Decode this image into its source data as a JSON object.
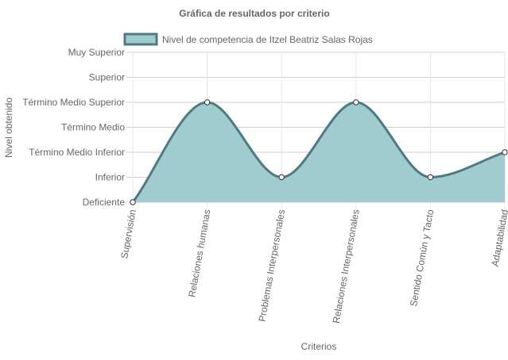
{
  "chart_data": {
    "type": "area",
    "title": "Gráfica de resultados por criterio",
    "xlabel": "Criterios",
    "ylabel": "Nivel obtenido",
    "categories": [
      "Supervisión",
      "Relaciones humanas",
      "Problemas Interpersonales",
      "Relaciones Interpersonales",
      "Sentido Común y Tacto",
      "Adaptabilidad"
    ],
    "y_levels": [
      "Deficiente",
      "Inferior",
      "Término Medio Inferior",
      "Término Medio",
      "Término Medio Superior",
      "Superior",
      "Muy Superior"
    ],
    "ylim": [
      0,
      6
    ],
    "series": [
      {
        "name": "Nivel de competencia de Itzel Beatriz Salas Rojas",
        "values": [
          0,
          4,
          1,
          4,
          1,
          2
        ]
      }
    ],
    "legend_position": "top",
    "grid": true,
    "colors": {
      "fill": "#a0cbcf",
      "line": "#4f7a82",
      "point_fill": "#ffffff",
      "grid": "#cfcfcf",
      "text": "#666666"
    }
  }
}
